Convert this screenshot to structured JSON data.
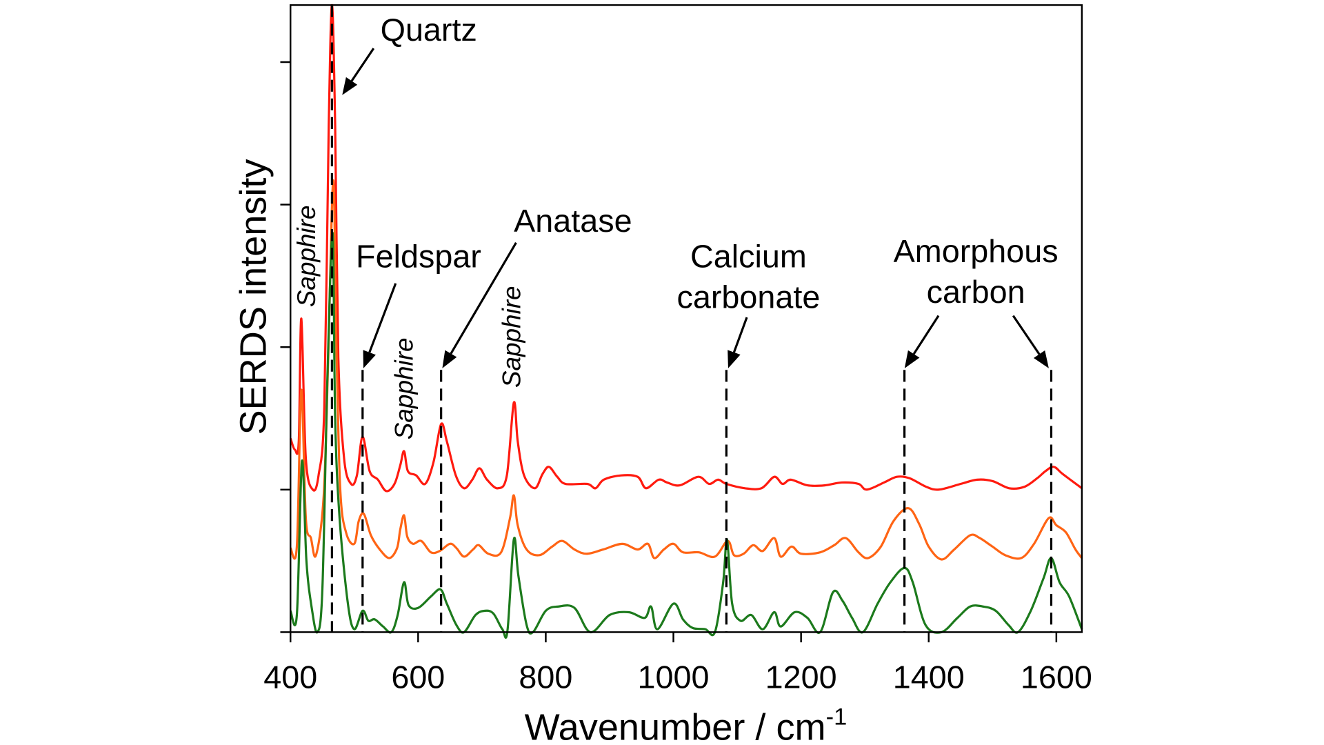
{
  "chart_data": {
    "type": "line",
    "xlabel": "Wavenumber / cm",
    "xlabel_superscript": "-1",
    "ylabel": "SERDS intensity",
    "xlim": [
      400,
      1640
    ],
    "ylim": [
      0,
      4.4
    ],
    "x_ticks": [
      400,
      600,
      800,
      1000,
      1200,
      1400,
      1600
    ],
    "x_tick_labels": [
      "400",
      "600",
      "800",
      "1000",
      "1200",
      "1400",
      "1600"
    ],
    "y_ticks": [
      0,
      1,
      2,
      3,
      4
    ],
    "y_tick_labels_shown": false,
    "grid": false,
    "legend": "none",
    "colors": {
      "red": "#ff1a0f",
      "orange": "#ff6414",
      "green": "#1c7a1c"
    },
    "series": [
      {
        "color": "red",
        "points": [
          [
            400,
            1.36
          ],
          [
            407,
            1.28
          ],
          [
            413,
            1.34
          ],
          [
            417,
            2.2
          ],
          [
            424,
            1.22
          ],
          [
            435,
            1.0
          ],
          [
            444,
            1.1
          ],
          [
            453,
            1.58
          ],
          [
            460,
            3.55
          ],
          [
            465,
            4.4
          ],
          [
            470,
            3.55
          ],
          [
            475,
            1.93
          ],
          [
            484,
            1.22
          ],
          [
            495,
            1.04
          ],
          [
            504,
            1.1
          ],
          [
            513,
            1.37
          ],
          [
            524,
            1.13
          ],
          [
            537,
            1.07
          ],
          [
            550,
            0.99
          ],
          [
            563,
            1.04
          ],
          [
            572,
            1.17
          ],
          [
            578,
            1.27
          ],
          [
            584,
            1.13
          ],
          [
            597,
            1.1
          ],
          [
            611,
            1.04
          ],
          [
            624,
            1.19
          ],
          [
            636,
            1.46
          ],
          [
            645,
            1.34
          ],
          [
            659,
            1.1
          ],
          [
            672,
            1.01
          ],
          [
            685,
            1.07
          ],
          [
            696,
            1.15
          ],
          [
            708,
            1.07
          ],
          [
            725,
            1.01
          ],
          [
            739,
            1.1
          ],
          [
            750,
            1.61
          ],
          [
            756,
            1.34
          ],
          [
            766,
            1.1
          ],
          [
            783,
            1.01
          ],
          [
            795,
            1.11
          ],
          [
            805,
            1.16
          ],
          [
            818,
            1.09
          ],
          [
            831,
            1.04
          ],
          [
            865,
            1.04
          ],
          [
            878,
            1.01
          ],
          [
            891,
            1.07
          ],
          [
            918,
            1.1
          ],
          [
            944,
            1.09
          ],
          [
            957,
            1.01
          ],
          [
            977,
            1.07
          ],
          [
            990,
            1.05
          ],
          [
            1010,
            1.03
          ],
          [
            1039,
            1.09
          ],
          [
            1056,
            1.04
          ],
          [
            1070,
            1.07
          ],
          [
            1083,
            1.04
          ],
          [
            1112,
            1.01
          ],
          [
            1138,
            1.01
          ],
          [
            1158,
            1.09
          ],
          [
            1171,
            1.04
          ],
          [
            1184,
            1.07
          ],
          [
            1210,
            1.03
          ],
          [
            1237,
            1.03
          ],
          [
            1264,
            1.05
          ],
          [
            1290,
            1.04
          ],
          [
            1303,
            1.0
          ],
          [
            1330,
            1.05
          ],
          [
            1350,
            1.09
          ],
          [
            1370,
            1.08
          ],
          [
            1396,
            1.02
          ],
          [
            1416,
            1.0
          ],
          [
            1450,
            1.04
          ],
          [
            1476,
            1.07
          ],
          [
            1500,
            1.06
          ],
          [
            1526,
            1.01
          ],
          [
            1550,
            1.02
          ],
          [
            1570,
            1.08
          ],
          [
            1583,
            1.13
          ],
          [
            1596,
            1.16
          ],
          [
            1610,
            1.11
          ],
          [
            1640,
            1.01
          ]
        ]
      },
      {
        "color": "orange",
        "points": [
          [
            400,
            0.59
          ],
          [
            410,
            0.6
          ],
          [
            417,
            1.7
          ],
          [
            424,
            0.8
          ],
          [
            432,
            0.66
          ],
          [
            440,
            0.54
          ],
          [
            452,
            0.95
          ],
          [
            459,
            1.9
          ],
          [
            467,
            3.17
          ],
          [
            472,
            2.0
          ],
          [
            478,
            1.0
          ],
          [
            487,
            0.7
          ],
          [
            500,
            0.62
          ],
          [
            507,
            0.78
          ],
          [
            515,
            0.83
          ],
          [
            526,
            0.68
          ],
          [
            540,
            0.58
          ],
          [
            555,
            0.52
          ],
          [
            567,
            0.59
          ],
          [
            572,
            0.72
          ],
          [
            578,
            0.82
          ],
          [
            583,
            0.67
          ],
          [
            592,
            0.62
          ],
          [
            605,
            0.64
          ],
          [
            620,
            0.56
          ],
          [
            634,
            0.57
          ],
          [
            650,
            0.62
          ],
          [
            660,
            0.59
          ],
          [
            672,
            0.53
          ],
          [
            686,
            0.58
          ],
          [
            695,
            0.61
          ],
          [
            710,
            0.55
          ],
          [
            730,
            0.56
          ],
          [
            744,
            0.8
          ],
          [
            750,
            0.96
          ],
          [
            756,
            0.75
          ],
          [
            770,
            0.58
          ],
          [
            790,
            0.54
          ],
          [
            810,
            0.6
          ],
          [
            826,
            0.64
          ],
          [
            845,
            0.58
          ],
          [
            864,
            0.55
          ],
          [
            890,
            0.58
          ],
          [
            920,
            0.62
          ],
          [
            944,
            0.58
          ],
          [
            960,
            0.62
          ],
          [
            970,
            0.52
          ],
          [
            985,
            0.58
          ],
          [
            1000,
            0.62
          ],
          [
            1015,
            0.56
          ],
          [
            1040,
            0.56
          ],
          [
            1065,
            0.53
          ],
          [
            1085,
            0.64
          ],
          [
            1095,
            0.54
          ],
          [
            1110,
            0.55
          ],
          [
            1125,
            0.61
          ],
          [
            1140,
            0.57
          ],
          [
            1158,
            0.66
          ],
          [
            1168,
            0.53
          ],
          [
            1185,
            0.6
          ],
          [
            1200,
            0.55
          ],
          [
            1230,
            0.56
          ],
          [
            1252,
            0.61
          ],
          [
            1270,
            0.66
          ],
          [
            1290,
            0.56
          ],
          [
            1305,
            0.52
          ],
          [
            1325,
            0.6
          ],
          [
            1345,
            0.78
          ],
          [
            1368,
            0.87
          ],
          [
            1385,
            0.76
          ],
          [
            1400,
            0.6
          ],
          [
            1420,
            0.51
          ],
          [
            1440,
            0.58
          ],
          [
            1465,
            0.68
          ],
          [
            1480,
            0.66
          ],
          [
            1500,
            0.6
          ],
          [
            1520,
            0.54
          ],
          [
            1545,
            0.52
          ],
          [
            1565,
            0.62
          ],
          [
            1588,
            0.8
          ],
          [
            1600,
            0.75
          ],
          [
            1615,
            0.7
          ],
          [
            1630,
            0.58
          ],
          [
            1640,
            0.52
          ]
        ]
      },
      {
        "color": "green",
        "points": [
          [
            400,
            0.15
          ],
          [
            410,
            0.12
          ],
          [
            418,
            1.2
          ],
          [
            425,
            0.5
          ],
          [
            433,
            0.18
          ],
          [
            442,
            0.0
          ],
          [
            450,
            0.3
          ],
          [
            458,
            1.8
          ],
          [
            466,
            2.8
          ],
          [
            470,
            1.5
          ],
          [
            477,
            0.8
          ],
          [
            490,
            0.2
          ],
          [
            500,
            0.02
          ],
          [
            513,
            0.15
          ],
          [
            522,
            0.08
          ],
          [
            532,
            0.09
          ],
          [
            545,
            0.04
          ],
          [
            558,
            0.0
          ],
          [
            568,
            0.12
          ],
          [
            578,
            0.35
          ],
          [
            585,
            0.19
          ],
          [
            600,
            0.17
          ],
          [
            620,
            0.25
          ],
          [
            635,
            0.3
          ],
          [
            645,
            0.2
          ],
          [
            660,
            0.05
          ],
          [
            672,
            0.0
          ],
          [
            690,
            0.12
          ],
          [
            705,
            0.15
          ],
          [
            718,
            0.13
          ],
          [
            732,
            0.02
          ],
          [
            740,
            0.01
          ],
          [
            750,
            0.65
          ],
          [
            757,
            0.4
          ],
          [
            770,
            0.05
          ],
          [
            780,
            0.0
          ],
          [
            800,
            0.15
          ],
          [
            820,
            0.18
          ],
          [
            845,
            0.17
          ],
          [
            870,
            0.0
          ],
          [
            900,
            0.12
          ],
          [
            930,
            0.14
          ],
          [
            955,
            0.1
          ],
          [
            965,
            0.18
          ],
          [
            975,
            0.02
          ],
          [
            1000,
            0.2
          ],
          [
            1015,
            0.09
          ],
          [
            1030,
            0.03
          ],
          [
            1050,
            0.02
          ],
          [
            1065,
            0.0
          ],
          [
            1078,
            0.35
          ],
          [
            1084,
            0.65
          ],
          [
            1092,
            0.2
          ],
          [
            1105,
            0.08
          ],
          [
            1122,
            0.12
          ],
          [
            1140,
            0.02
          ],
          [
            1158,
            0.14
          ],
          [
            1168,
            0.04
          ],
          [
            1190,
            0.14
          ],
          [
            1210,
            0.1
          ],
          [
            1230,
            0.0
          ],
          [
            1250,
            0.28
          ],
          [
            1265,
            0.22
          ],
          [
            1280,
            0.1
          ],
          [
            1297,
            0.0
          ],
          [
            1320,
            0.2
          ],
          [
            1340,
            0.35
          ],
          [
            1362,
            0.45
          ],
          [
            1375,
            0.35
          ],
          [
            1395,
            0.05
          ],
          [
            1420,
            0.0
          ],
          [
            1445,
            0.1
          ],
          [
            1465,
            0.18
          ],
          [
            1485,
            0.18
          ],
          [
            1505,
            0.15
          ],
          [
            1525,
            0.05
          ],
          [
            1540,
            0.0
          ],
          [
            1560,
            0.15
          ],
          [
            1580,
            0.38
          ],
          [
            1592,
            0.52
          ],
          [
            1605,
            0.35
          ],
          [
            1620,
            0.25
          ],
          [
            1640,
            0.02
          ]
        ]
      }
    ],
    "marker_lines": [
      465,
      513,
      636,
      1083,
      1362,
      1592
    ],
    "annotations": {
      "quartz": "Quartz",
      "feldspar": "Feldspar",
      "anatase": "Anatase",
      "calcium_line1": "Calcium",
      "calcium_line2": "carbonate",
      "amorphous_line1": "Amorphous",
      "amorphous_line2": "carbon",
      "sapphire": "Sapphire"
    }
  }
}
